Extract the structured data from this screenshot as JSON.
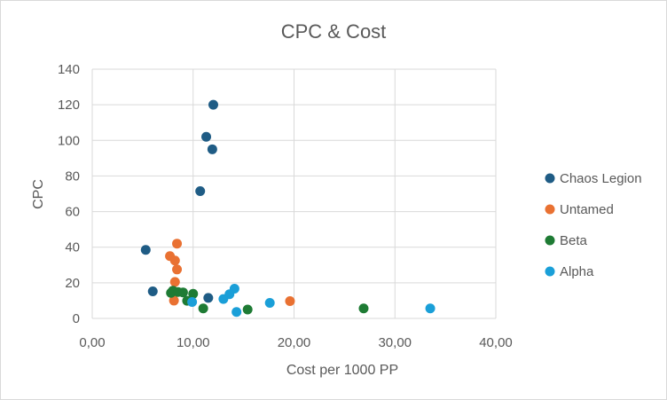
{
  "chart_data": {
    "type": "scatter",
    "title": "CPC & Cost",
    "xlabel": "Cost per 1000 PP",
    "ylabel": "CPC",
    "xlim": [
      0,
      40
    ],
    "ylim": [
      0,
      140
    ],
    "x_ticks": [
      0,
      10,
      20,
      30,
      40
    ],
    "x_tick_labels": [
      "0,00",
      "10,00",
      "20,00",
      "30,00",
      "40,00"
    ],
    "y_ticks": [
      0,
      20,
      40,
      60,
      80,
      100,
      120,
      140
    ],
    "y_tick_labels": [
      "0",
      "20",
      "40",
      "60",
      "80",
      "100",
      "120",
      "140"
    ],
    "grid": true,
    "legend_position": "right",
    "series": [
      {
        "name": "Chaos Legion",
        "color": "#1f5c85",
        "points": [
          [
            12.0,
            120
          ],
          [
            11.3,
            102
          ],
          [
            11.9,
            95
          ],
          [
            10.7,
            71.5
          ],
          [
            5.3,
            38.5
          ],
          [
            6.0,
            15.2
          ],
          [
            11.5,
            11.5
          ]
        ]
      },
      {
        "name": "Untamed",
        "color": "#e97132",
        "points": [
          [
            8.4,
            42
          ],
          [
            7.7,
            35
          ],
          [
            8.2,
            32.5
          ],
          [
            8.4,
            27.5
          ],
          [
            8.2,
            20.5
          ],
          [
            8.1,
            10
          ],
          [
            19.6,
            9.7
          ]
        ]
      },
      {
        "name": "Beta",
        "color": "#1e7b34",
        "points": [
          [
            7.8,
            14.3
          ],
          [
            8.0,
            15.6
          ],
          [
            8.5,
            14.8
          ],
          [
            9.0,
            14.6
          ],
          [
            10.0,
            13.8
          ],
          [
            9.4,
            9.9
          ],
          [
            11.0,
            5.6
          ],
          [
            15.4,
            5.0
          ],
          [
            26.9,
            5.6
          ]
        ]
      },
      {
        "name": "Alpha",
        "color": "#1a9fd8",
        "points": [
          [
            14.1,
            16.7
          ],
          [
            13.6,
            13.6
          ],
          [
            13.0,
            10.9
          ],
          [
            9.9,
            9.2
          ],
          [
            14.3,
            3.6
          ],
          [
            17.6,
            8.7
          ],
          [
            33.5,
            5.6
          ]
        ]
      }
    ]
  }
}
